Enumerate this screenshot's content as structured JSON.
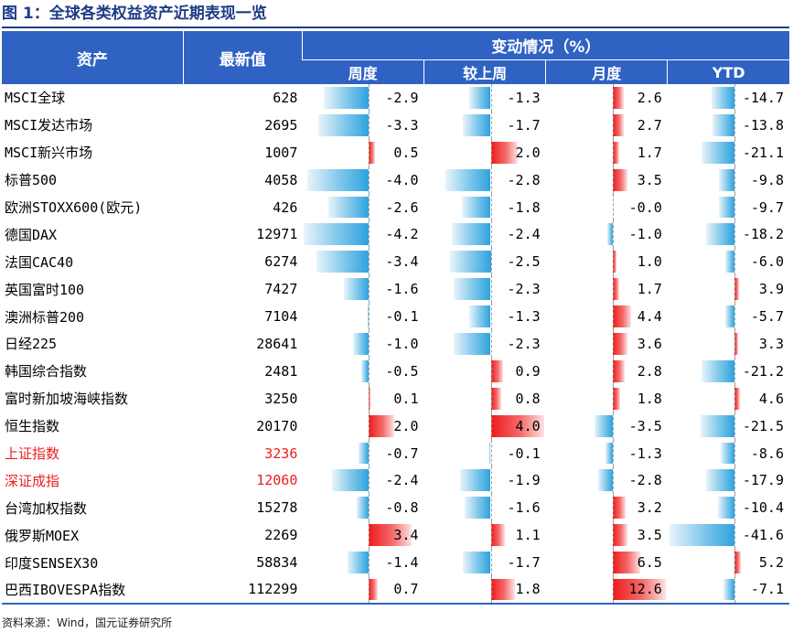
{
  "title": "图 1：全球各类权益资产近期表现一览",
  "header": {
    "asset": "资产",
    "price": "最新值",
    "change_group": "变动情况（%）",
    "cols": [
      "周度",
      "较上周",
      "月度",
      "YTD"
    ]
  },
  "colors": {
    "header_bg": "#2f62c3",
    "title": "#1f3c88",
    "positive_bar": "#ee1b1b",
    "negative_bar": "#2ea2de",
    "highlight_text": "#e8201f"
  },
  "rows": [
    {
      "asset": "MSCI全球",
      "price": "628",
      "vals": [
        "-2.9",
        "-1.3",
        "2.6",
        "-14.7"
      ]
    },
    {
      "asset": "MSCI发达市场",
      "price": "2695",
      "vals": [
        "-3.3",
        "-1.7",
        "2.7",
        "-13.8"
      ]
    },
    {
      "asset": "MSCI新兴市场",
      "price": "1007",
      "vals": [
        "0.5",
        "2.0",
        "1.7",
        "-21.1"
      ]
    },
    {
      "asset": "标普500",
      "price": "4058",
      "vals": [
        "-4.0",
        "-2.8",
        "3.5",
        "-9.8"
      ]
    },
    {
      "asset": "欧洲STOXX600(欧元)",
      "price": "426",
      "vals": [
        "-2.6",
        "-1.8",
        "-0.0",
        "-9.7"
      ]
    },
    {
      "asset": "德国DAX",
      "price": "12971",
      "vals": [
        "-4.2",
        "-2.4",
        "-1.0",
        "-18.2"
      ]
    },
    {
      "asset": "法国CAC40",
      "price": "6274",
      "vals": [
        "-3.4",
        "-2.5",
        "1.0",
        "-6.0"
      ]
    },
    {
      "asset": "英国富时100",
      "price": "7427",
      "vals": [
        "-1.6",
        "-2.3",
        "1.7",
        "3.9"
      ]
    },
    {
      "asset": "澳洲标普200",
      "price": "7104",
      "vals": [
        "-0.1",
        "-1.3",
        "4.4",
        "-5.7"
      ]
    },
    {
      "asset": "日经225",
      "price": "28641",
      "vals": [
        "-1.0",
        "-2.3",
        "3.6",
        "3.3"
      ]
    },
    {
      "asset": "韩国综合指数",
      "price": "2481",
      "vals": [
        "-0.5",
        "0.9",
        "2.8",
        "-21.2"
      ]
    },
    {
      "asset": "富时新加坡海峡指数",
      "price": "3250",
      "vals": [
        "0.1",
        "0.8",
        "1.8",
        "4.6"
      ]
    },
    {
      "asset": "恒生指数",
      "price": "20170",
      "vals": [
        "2.0",
        "4.0",
        "-3.5",
        "-21.5"
      ]
    },
    {
      "asset": "上证指数",
      "price": "3236",
      "vals": [
        "-0.7",
        "-0.1",
        "-1.3",
        "-8.6"
      ],
      "highlight": true
    },
    {
      "asset": "深证成指",
      "price": "12060",
      "vals": [
        "-2.4",
        "-1.9",
        "-2.8",
        "-17.9"
      ],
      "highlight": true
    },
    {
      "asset": "台湾加权指数",
      "price": "15278",
      "vals": [
        "-0.8",
        "-1.6",
        "3.2",
        "-10.4"
      ]
    },
    {
      "asset": "俄罗斯MOEX",
      "price": "2269",
      "vals": [
        "3.4",
        "1.1",
        "3.5",
        "-41.6"
      ]
    },
    {
      "asset": "印度SENSEX30",
      "price": "58834",
      "vals": [
        "-1.4",
        "-1.7",
        "6.5",
        "5.2"
      ]
    },
    {
      "asset": "巴西IBOVESPA指数",
      "price": "112299",
      "vals": [
        "0.7",
        "1.8",
        "12.6",
        "-7.1"
      ]
    }
  ],
  "source": "资料来源：Wind，国元证券研究所"
}
